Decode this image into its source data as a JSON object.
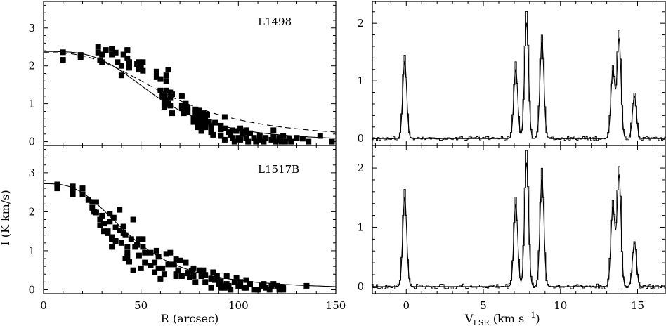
{
  "chart_data": [
    {
      "type": "scatter",
      "panel": "top-left",
      "label": "L1498",
      "xlim": [
        0,
        150
      ],
      "ylim": [
        -0.1,
        3.7
      ],
      "yticks": [
        0,
        1,
        2,
        3
      ],
      "xticks": [
        0,
        50,
        100,
        150
      ],
      "points": [
        [
          10,
          2.36
        ],
        [
          10,
          2.16
        ],
        [
          19,
          2.29
        ],
        [
          19,
          2.22
        ],
        [
          28,
          2.5
        ],
        [
          28,
          2.35
        ],
        [
          29,
          2.15
        ],
        [
          30,
          2.1
        ],
        [
          30,
          2.3
        ],
        [
          32,
          2.42
        ],
        [
          35,
          2.3
        ],
        [
          35,
          2.45
        ],
        [
          37,
          2.35
        ],
        [
          38,
          2.1
        ],
        [
          40,
          1.75
        ],
        [
          40,
          2.0
        ],
        [
          41,
          2.3
        ],
        [
          43,
          2.42
        ],
        [
          43,
          2.4
        ],
        [
          43,
          2.2
        ],
        [
          44,
          2.1
        ],
        [
          44,
          1.95
        ],
        [
          48,
          2.05
        ],
        [
          49,
          1.9
        ],
        [
          49,
          2.1
        ],
        [
          50,
          2.0
        ],
        [
          51,
          2.1
        ],
        [
          51,
          1.87
        ],
        [
          58,
          1.7
        ],
        [
          58,
          1.85
        ],
        [
          60,
          1.65
        ],
        [
          60,
          1.35
        ],
        [
          61,
          1.2
        ],
        [
          62,
          1.05
        ],
        [
          62,
          0.92
        ],
        [
          62,
          1.15
        ],
        [
          62,
          1.25
        ],
        [
          63,
          1.35
        ],
        [
          63,
          1.1
        ],
        [
          63,
          1.6
        ],
        [
          63,
          1.75
        ],
        [
          64,
          1.0
        ],
        [
          64,
          1.9
        ],
        [
          65,
          1.3
        ],
        [
          65,
          1.15
        ],
        [
          65,
          0.95
        ],
        [
          66,
          0.75
        ],
        [
          66,
          1.25
        ],
        [
          71,
          1.2
        ],
        [
          71,
          0.95
        ],
        [
          71,
          0.88
        ],
        [
          72,
          0.82
        ],
        [
          72,
          0.75
        ],
        [
          73,
          1.0
        ],
        [
          74,
          0.9
        ],
        [
          74,
          0.78
        ],
        [
          77,
          0.62
        ],
        [
          77,
          0.52
        ],
        [
          78,
          0.85
        ],
        [
          78,
          0.75
        ],
        [
          78,
          0.62
        ],
        [
          78,
          0.55
        ],
        [
          79,
          0.48
        ],
        [
          79,
          0.38
        ],
        [
          80,
          0.82
        ],
        [
          80,
          0.7
        ],
        [
          80,
          0.65
        ],
        [
          80,
          0.55
        ],
        [
          81,
          0.45
        ],
        [
          81,
          0.35
        ],
        [
          81,
          0.28
        ],
        [
          82,
          0.75
        ],
        [
          82,
          0.62
        ],
        [
          82,
          0.55
        ],
        [
          82,
          0.48
        ],
        [
          83,
          0.38
        ],
        [
          83,
          0.45
        ],
        [
          83,
          0.6
        ],
        [
          84,
          0.7
        ],
        [
          85,
          0.52
        ],
        [
          86,
          0.4
        ],
        [
          86,
          0.32
        ],
        [
          86,
          0.25
        ],
        [
          87,
          0.18
        ],
        [
          88,
          0.5
        ],
        [
          91,
          0.15
        ],
        [
          91,
          0.32
        ],
        [
          91,
          0.42
        ],
        [
          93,
          0.65
        ],
        [
          93,
          0.35
        ],
        [
          93,
          0.05
        ],
        [
          95,
          0.25
        ],
        [
          96,
          0.18
        ],
        [
          97,
          0.3
        ],
        [
          97,
          0.1
        ],
        [
          98,
          0.0
        ],
        [
          99,
          0.28
        ],
        [
          100,
          0.1
        ],
        [
          101,
          0.35
        ],
        [
          101,
          0.05
        ],
        [
          102,
          0.2
        ],
        [
          103,
          0.25
        ],
        [
          104,
          0.1
        ],
        [
          104,
          0.3
        ],
        [
          105,
          0.0
        ],
        [
          106,
          0.22
        ],
        [
          108,
          0.1
        ],
        [
          109,
          0.0
        ],
        [
          111,
          0.15
        ],
        [
          111,
          0.05
        ],
        [
          113,
          0.0
        ],
        [
          114,
          0.1
        ],
        [
          117,
          0.05
        ],
        [
          118,
          0.3
        ],
        [
          118,
          0.12
        ],
        [
          119,
          0.0
        ],
        [
          121,
          0.1
        ],
        [
          121,
          0.05
        ],
        [
          122,
          0.0
        ],
        [
          123,
          0.15
        ],
        [
          124,
          0.0
        ],
        [
          126,
          0.08
        ],
        [
          127,
          0.0
        ],
        [
          130,
          0.1
        ],
        [
          133,
          0.08
        ],
        [
          136,
          0.0
        ],
        [
          142,
          0.15
        ],
        [
          148,
          0.0
        ]
      ],
      "curves": [
        {
          "style": "solid",
          "y0": 2.38,
          "r0": 58,
          "p": 3.4,
          "b": 0
        },
        {
          "style": "dashed",
          "y0": 2.35,
          "r0": 65,
          "p": 2.8,
          "b": 0.05
        }
      ]
    },
    {
      "type": "scatter",
      "panel": "bottom-left",
      "label": "L1517B",
      "xlim": [
        0,
        150
      ],
      "ylim": [
        -0.1,
        3.7
      ],
      "yticks": [
        0,
        1,
        2,
        3
      ],
      "xticks": [
        0,
        50,
        100,
        150
      ],
      "xlabel": "R (arcsec)",
      "points": [
        [
          7,
          2.7
        ],
        [
          7,
          2.6
        ],
        [
          15,
          2.65
        ],
        [
          15,
          2.55
        ],
        [
          15,
          2.45
        ],
        [
          20,
          2.6
        ],
        [
          20,
          2.45
        ],
        [
          23,
          2.3
        ],
        [
          25,
          2.25
        ],
        [
          25,
          2.1
        ],
        [
          26,
          2.0
        ],
        [
          26,
          2.25
        ],
        [
          27,
          1.98
        ],
        [
          27,
          2.25
        ],
        [
          29,
          1.8
        ],
        [
          29,
          1.65
        ],
        [
          30,
          1.9
        ],
        [
          31,
          1.7
        ],
        [
          31,
          1.5
        ],
        [
          33,
          1.5
        ],
        [
          33,
          1.45
        ],
        [
          34,
          1.95
        ],
        [
          34,
          1.75
        ],
        [
          35,
          1.35
        ],
        [
          35,
          1.3
        ],
        [
          35,
          1.1
        ],
        [
          36,
          1.85
        ],
        [
          37,
          1.6
        ],
        [
          37,
          1.25
        ],
        [
          39,
          2.05
        ],
        [
          39,
          1.52
        ],
        [
          40,
          1.2
        ],
        [
          41,
          1.62
        ],
        [
          41,
          1.45
        ],
        [
          42,
          1.4
        ],
        [
          42,
          0.8
        ],
        [
          43,
          1.1
        ],
        [
          43,
          0.95
        ],
        [
          43,
          0.85
        ],
        [
          44,
          0.72
        ],
        [
          45,
          1.3
        ],
        [
          46,
          1.8
        ],
        [
          46,
          0.5
        ],
        [
          47,
          1.1
        ],
        [
          48,
          1.15
        ],
        [
          49,
          1.3
        ],
        [
          49,
          0.88
        ],
        [
          50,
          0.55
        ],
        [
          51,
          1.3
        ],
        [
          51,
          1.1
        ],
        [
          52,
          0.95
        ],
        [
          52,
          0.7
        ],
        [
          55,
          0.95
        ],
        [
          55,
          0.62
        ],
        [
          57,
          0.7
        ],
        [
          57,
          0.45
        ],
        [
          58,
          1.0
        ],
        [
          59,
          0.85
        ],
        [
          59,
          0.55
        ],
        [
          60,
          0.28
        ],
        [
          61,
          0.55
        ],
        [
          62,
          0.4
        ],
        [
          63,
          0.92
        ],
        [
          64,
          0.65
        ],
        [
          65,
          0.95
        ],
        [
          67,
          0.65
        ],
        [
          68,
          0.78
        ],
        [
          68,
          0.4
        ],
        [
          68,
          0.35
        ],
        [
          69,
          0.5
        ],
        [
          70,
          0.75
        ],
        [
          71,
          0.35
        ],
        [
          73,
          0.7
        ],
        [
          74,
          0.42
        ],
        [
          75,
          0.32
        ],
        [
          76,
          0.48
        ],
        [
          77,
          0.55
        ],
        [
          77,
          0.35
        ],
        [
          78,
          0.2
        ],
        [
          80,
          0.5
        ],
        [
          81,
          0.35
        ],
        [
          82,
          0.5
        ],
        [
          83,
          0.2
        ],
        [
          83,
          0.38
        ],
        [
          86,
          0.05
        ],
        [
          86,
          0.28
        ],
        [
          87,
          0.45
        ],
        [
          88,
          0.25
        ],
        [
          89,
          0.35
        ],
        [
          90,
          0.15
        ],
        [
          91,
          0.22
        ],
        [
          91,
          0.05
        ],
        [
          92,
          0.1
        ],
        [
          93,
          0.05
        ],
        [
          94,
          0.35
        ],
        [
          94,
          0.15
        ],
        [
          95,
          0.1
        ],
        [
          96,
          0.0
        ],
        [
          98,
          0.2
        ],
        [
          99,
          0.3
        ],
        [
          100,
          0.08
        ],
        [
          101,
          0.2
        ],
        [
          101,
          0.1
        ],
        [
          103,
          0.05
        ],
        [
          104,
          0.25
        ],
        [
          104,
          0.05
        ],
        [
          106,
          0.15
        ],
        [
          108,
          0.0
        ],
        [
          110,
          0.0
        ],
        [
          112,
          0.1
        ],
        [
          113,
          0.15
        ],
        [
          114,
          0.05
        ],
        [
          116,
          0.0
        ],
        [
          117,
          0.1
        ],
        [
          118,
          0.15
        ],
        [
          120,
          0.1
        ],
        [
          121,
          0.05
        ],
        [
          121,
          0.0
        ],
        [
          123,
          0.0
        ],
        [
          123,
          0.05
        ],
        [
          135,
          0.1
        ]
      ],
      "curves": [
        {
          "style": "solid",
          "y0": 2.72,
          "r0": 45,
          "p": 2.9,
          "b": 0
        }
      ]
    },
    {
      "type": "line",
      "panel": "top-right",
      "xlim": [
        -2.2,
        16.8
      ],
      "ylim": [
        -0.12,
        2.38
      ],
      "yticks": [
        0,
        1,
        2
      ],
      "xticks": [
        0,
        5,
        10,
        15
      ],
      "lines": [
        {
          "x0": -0.1,
          "h": 1.45
        },
        {
          "x0": 7.1,
          "h": 1.3
        },
        {
          "x0": 7.8,
          "h": 2.18
        },
        {
          "x0": 8.8,
          "h": 1.82
        },
        {
          "x0": 13.4,
          "h": 1.27
        },
        {
          "x0": 13.8,
          "h": 1.87
        },
        {
          "x0": 14.8,
          "h": 0.8
        }
      ],
      "model_scale": 0.92,
      "width": 0.13,
      "noise": 0.035
    },
    {
      "type": "line",
      "panel": "bottom-right",
      "xlim": [
        -2.2,
        16.8
      ],
      "ylim": [
        -0.12,
        2.38
      ],
      "yticks": [
        0,
        1,
        2
      ],
      "xticks": [
        0,
        5,
        10,
        15
      ],
      "xlabel_main": "V",
      "xlabel_sub": "LSR",
      "xlabel_rest": " (km s",
      "xlabel_sup": "−1",
      "xlabel_end": ")",
      "lines": [
        {
          "x0": -0.1,
          "h": 1.63
        },
        {
          "x0": 7.1,
          "h": 1.5
        },
        {
          "x0": 7.8,
          "h": 2.27
        },
        {
          "x0": 8.8,
          "h": 1.97
        },
        {
          "x0": 13.4,
          "h": 1.45
        },
        {
          "x0": 13.8,
          "h": 2.03
        },
        {
          "x0": 14.8,
          "h": 0.8
        }
      ],
      "model_scale": 0.92,
      "width": 0.13,
      "noise": 0.045
    }
  ],
  "ylabel": "I (K km/s)"
}
